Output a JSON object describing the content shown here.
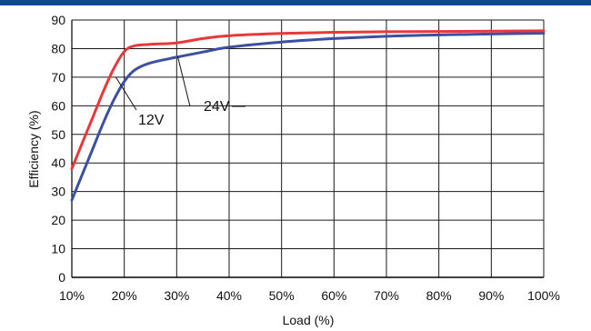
{
  "theme": {
    "band_color": "#0b4a8b",
    "grid_color": "#1a1a1a",
    "axis_color": "#000000"
  },
  "chart_data": {
    "type": "line",
    "title": "",
    "xlabel": "Load (%)",
    "ylabel": "Efficiency (%)",
    "xlim": [
      10,
      100
    ],
    "ylim": [
      0,
      90
    ],
    "grid": true,
    "x_ticks": [
      "10%",
      "20%",
      "30%",
      "40%",
      "50%",
      "60%",
      "70%",
      "80%",
      "90%",
      "100%"
    ],
    "y_ticks": [
      "0",
      "10",
      "20",
      "30",
      "40",
      "50",
      "60",
      "70",
      "80",
      "90"
    ],
    "series": [
      {
        "name": "12V",
        "color": "#e8383a",
        "x": [
          10,
          12,
          14,
          16,
          18,
          20,
          22,
          25,
          30,
          35,
          40,
          50,
          60,
          70,
          80,
          90,
          100
        ],
        "y": [
          38,
          47,
          56,
          65,
          73,
          79,
          81,
          81.5,
          82,
          83.5,
          84.5,
          85.3,
          85.7,
          85.9,
          86,
          86.1,
          86.2
        ]
      },
      {
        "name": "24V",
        "color": "#3c4fa0",
        "x": [
          10,
          12,
          14,
          16,
          18,
          20,
          22,
          25,
          30,
          35,
          40,
          50,
          60,
          70,
          80,
          90,
          100
        ],
        "y": [
          27,
          36,
          45,
          54,
          62,
          68.5,
          72.5,
          75,
          77,
          78.8,
          80.5,
          82.3,
          83.5,
          84.3,
          84.8,
          85.1,
          85.4
        ]
      }
    ]
  }
}
